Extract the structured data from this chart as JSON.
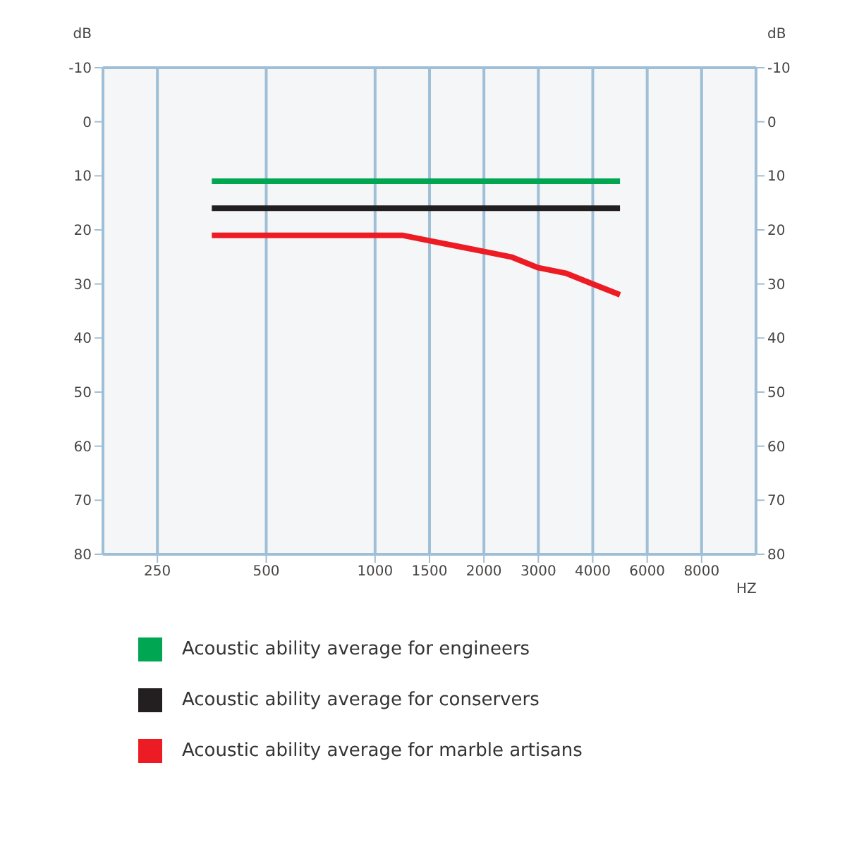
{
  "chart_data": {
    "type": "line",
    "categories": [
      null,
      null,
      "250",
      null,
      null,
      null,
      "500",
      null,
      null,
      null,
      "1000",
      null,
      "1500",
      null,
      "2000",
      null,
      "3000",
      null,
      "4000",
      null,
      "6000",
      null,
      "8000",
      null
    ],
    "series": [
      {
        "name": "Acoustic ability average for engineers",
        "color": "#00a651",
        "values": [
          null,
          null,
          null,
          null,
          11,
          11,
          11,
          11,
          11,
          11,
          11,
          11,
          11,
          11,
          11,
          11,
          11,
          11,
          11,
          11,
          null,
          null,
          null,
          null
        ]
      },
      {
        "name": "Acoustic ability average for conservers",
        "color": "#231f20",
        "values": [
          null,
          null,
          null,
          null,
          16,
          16,
          16,
          16,
          16,
          16,
          16,
          16,
          16,
          16,
          16,
          16,
          16,
          16,
          16,
          16,
          null,
          null,
          null,
          null
        ]
      },
      {
        "name": "Acoustic ability average for marble artisans",
        "color": "#ed1c24",
        "values": [
          null,
          null,
          null,
          null,
          21,
          21,
          21,
          21,
          21,
          21,
          21,
          21,
          22,
          23,
          24,
          25,
          27,
          28,
          30,
          32,
          null,
          null,
          null,
          null
        ]
      }
    ],
    "xlabel": "HZ",
    "ylabel": "dB",
    "y2label": "dB",
    "ylim": [
      80,
      -10
    ],
    "yticks": [
      -10,
      0,
      10,
      20,
      30,
      40,
      50,
      60,
      70,
      80
    ],
    "y2lim": [
      80,
      -10
    ],
    "y2ticks": [
      -10,
      0,
      10,
      20,
      30,
      40,
      50,
      60,
      70,
      80
    ],
    "grid": true,
    "legend": "bottom left",
    "marker": "none",
    "line_style": "solid"
  }
}
